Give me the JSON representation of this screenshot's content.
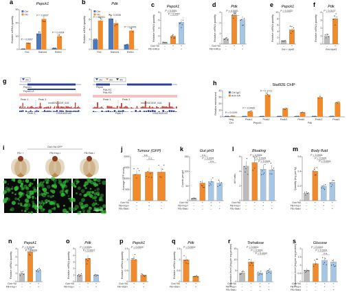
{
  "colors": {
    "ctrl": "#4a78b8",
    "yki": "#f08a2a",
    "gut": "#f08a2a",
    "grey": "#bbbbbb",
    "lightblue": "#a6c6e6",
    "gene_blue": "#2a3f9e",
    "peak_red": "#c23b3b",
    "igg": "#4a78b8",
    "anti": "#f08a2a"
  },
  "panels": {
    "a": {
      "letter": "a",
      "title": "Pepck1",
      "ylabel": "Relative mRNA quantity",
      "legend": [
        "Ctrl",
        "Yki"
      ],
      "groups": [
        "Fed",
        "Starved",
        "Refed"
      ],
      "pvalues": [
        "P = 0.0067",
        "P = 0.0007",
        "P = 0.0004"
      ],
      "chart_data": {
        "type": "bar",
        "categories": [
          "Fed",
          "Starved",
          "Refed"
        ],
        "series": [
          {
            "name": "Ctrl",
            "values": [
              0.5,
              12,
              1
            ]
          },
          {
            "name": "Yki",
            "values": [
              5,
              23,
              10
            ]
          }
        ],
        "ylim": [
          0,
          30
        ],
        "yticks": [
          0,
          10,
          20,
          30
        ],
        "ylabel": "Relative mRNA quantity"
      }
    },
    "b": {
      "letter": "b",
      "title": "Pdk",
      "ylabel": "Relative mRNA quantity",
      "legend": [
        "Ctrl",
        "Yki"
      ],
      "groups": [
        "Fed",
        "Starved",
        "Refed"
      ],
      "pvalues": [
        "P < 0.0001",
        "P = 0.0038",
        "P = 0.0006"
      ],
      "chart_data": {
        "type": "bar",
        "categories": [
          "Fed",
          "Starved",
          "Refed"
        ],
        "series": [
          {
            "name": "Ctrl",
            "values": [
              2,
              6.2,
              1
            ]
          },
          {
            "name": "Yki",
            "values": [
              5.8,
              5.3,
              3.8
            ]
          }
        ],
        "ylim": [
          0,
          8
        ],
        "yticks": [
          0,
          2,
          4,
          6,
          8
        ],
        "ylabel": "Relative mRNA quantity"
      }
    },
    "c": {
      "letter": "c",
      "title": "Pepck1",
      "ylabel": "Relative mRNA quantity",
      "pvalues": [
        "P < 0.0001",
        "P = 0.0067"
      ],
      "cond": [
        {
          "label": "Gut>Yki",
          "marks": [
            "–",
            "+",
            "+"
          ]
        },
        {
          "label": "FB>InRca",
          "marks": [
            "–",
            "–",
            "+"
          ]
        }
      ],
      "chart_data": {
        "type": "bar",
        "values": [
          0.4,
          2,
          5.5
        ],
        "ylim": [
          0,
          8
        ],
        "yticks": [
          0,
          2,
          4,
          6,
          8
        ],
        "ylabel": "Relative mRNA quantity"
      }
    },
    "d": {
      "letter": "d",
      "title": "Pdk",
      "ylabel": "Relative mRNA quantity",
      "pvalues": [
        "P < 0.0001",
        "n.s."
      ],
      "cond": [
        {
          "label": "Gut>Yki",
          "marks": [
            "–",
            "+",
            "+"
          ]
        },
        {
          "label": "FB>InRca",
          "marks": [
            "–",
            "–",
            "+"
          ]
        }
      ],
      "chart_data": {
        "type": "bar",
        "values": [
          0.5,
          2.7,
          2.3
        ],
        "ylim": [
          0,
          3
        ],
        "yticks": [
          0,
          1,
          2,
          3
        ],
        "ylabel": "Relative mRNA quantity"
      }
    },
    "e": {
      "letter": "e",
      "title": "Pepck1",
      "ylabel": "Relative mRNA quantity",
      "pvalues": [
        "P = 0.0433"
      ],
      "xlabel": "Gut > Upd3",
      "marks": [
        "–",
        "+"
      ],
      "chart_data": {
        "type": "bar",
        "values": [
          1,
          4.5
        ],
        "ylim": [
          0,
          10
        ],
        "yticks": [
          0,
          2,
          4,
          6,
          8,
          10
        ],
        "ylabel": "Relative mRNA quantity"
      }
    },
    "f": {
      "letter": "f",
      "title": "Pdk",
      "ylabel": "Relative mRNA quantity",
      "pvalues": [
        "P = 0.0107"
      ],
      "xlabel": "Gut>Upd3",
      "marks": [
        "–",
        "+"
      ],
      "chart_data": {
        "type": "bar",
        "values": [
          1,
          3.2
        ],
        "ylim": [
          0,
          4
        ],
        "yticks": [
          0,
          1,
          2,
          3,
          4
        ],
        "ylabel": "Relative mRNA quantity"
      }
    },
    "g": {
      "letter": "g",
      "genes_left": [
        "Pepck1",
        "Pepck1-A"
      ],
      "genes_right": [
        "Pepck",
        "Pdk-RC",
        "Pdk-RD"
      ],
      "markers_left": [
        "2N"
      ],
      "markers_right": [
        "2N",
        "3N",
        "4N"
      ],
      "peaks_left": [
        "Peak 1",
        "Peak 3",
        "Peak 2"
      ],
      "peaks_right": [
        "Peak 1",
        "Peak 3",
        "Peak 2"
      ],
      "tracks": [
        "modENCODE_616",
        "modENCODE_616"
      ],
      "gsm": [
        "GSM1645140",
        "GSM1645140"
      ]
    },
    "h": {
      "letter": "h",
      "title": "Stat92E ChIP",
      "ylabel": "Relative enrichment",
      "legend": [
        "Ctrl IgG",
        "Anti-HA"
      ],
      "groups": [
        "Neg",
        "Peak1",
        "Peak2",
        "Peak3",
        "Peak1",
        "Peak2",
        "Peak3"
      ],
      "group_labels": [
        "Ctrl",
        "Pepck1",
        "Pdk"
      ],
      "pvalues": [
        "P = 0.0199",
        "P = 0.0065",
        "P = 0.1711"
      ],
      "chart_data": {
        "type": "bar",
        "categories": [
          "Neg",
          "Peak1",
          "Peak2",
          "Peak3",
          "Peak1",
          "Peak2",
          "Peak3"
        ],
        "series": [
          {
            "name": "Ctrl IgG",
            "values": [
              1,
              1,
              1,
              1,
              1,
              1,
              1
            ]
          },
          {
            "name": "Anti-HA",
            "values": [
              1.2,
              8,
              34,
              13,
              7,
              30,
              22
            ]
          }
        ],
        "ylim": [
          0,
          40
        ],
        "yticks": [
          0,
          10,
          20,
          30,
          40
        ],
        "ylabel": "Relative enrichment"
      }
    },
    "i": {
      "letter": "i",
      "header": "Gut>Yki-GFP",
      "cols": [
        "FB> +",
        "FB>Hop-i",
        "FB>Stat-i"
      ],
      "scale": "100 µm"
    },
    "j": {
      "letter": "j",
      "title": "Tumour (GFP)",
      "ylabel": "Average GFP levels",
      "pvalues": [
        "n.s.",
        "n.s."
      ],
      "cond": [
        {
          "label": "Gut>Yki",
          "marks": [
            "+",
            "+",
            "+"
          ]
        },
        {
          "label": "FB>Hop-i",
          "marks": [
            "–",
            "+",
            "–"
          ]
        },
        {
          "label": "FB>Stat-i",
          "marks": [
            "–",
            "–",
            "+"
          ]
        }
      ],
      "chart_data": {
        "type": "bar",
        "values": [
          1200,
          1300,
          1300
        ],
        "ylim": [
          0,
          2000
        ],
        "yticks": [
          0,
          500,
          1000,
          1500,
          2000
        ],
        "ylabel": "Average GFP levels"
      }
    },
    "k": {
      "letter": "k",
      "title": "Gut pH3",
      "ylabel": "Counts per gut",
      "pvalues": [
        "n.s.",
        "P < 0.0001",
        "n.s."
      ],
      "cond": [
        {
          "label": "Gut>Yki",
          "marks": [
            "–",
            "+",
            "+",
            "+"
          ]
        },
        {
          "label": "FB>Hop-i",
          "marks": [
            "–",
            "–",
            "+",
            "–"
          ]
        },
        {
          "label": "FB>Stat-i",
          "marks": [
            "–",
            "–",
            "–",
            "+"
          ]
        }
      ],
      "chart_data": {
        "type": "bar",
        "values": [
          8,
          60,
          65,
          60
        ],
        "ylim": [
          0,
          150
        ],
        "yticks": [
          0,
          50,
          100,
          150
        ],
        "ylabel": "Counts per gut"
      }
    },
    "l": {
      "letter": "l",
      "title": "Bloating",
      "ylabel": "A/H ratio",
      "pvalues": [
        "P < 0.0001",
        "P < 0.0001",
        "P < 0.0001"
      ],
      "cond": [
        {
          "label": "Gut>Yki",
          "marks": [
            "–",
            "+",
            "+",
            "+"
          ]
        },
        {
          "label": "FB>Hop-i",
          "marks": [
            "–",
            "–",
            "+",
            "–"
          ]
        },
        {
          "label": "FB>Stat-i",
          "marks": [
            "–",
            "–",
            "–",
            "+"
          ]
        }
      ],
      "chart_data": {
        "type": "bar",
        "values": [
          4.7,
          5.2,
          4.3,
          4.2
        ],
        "ylim": [
          0,
          6
        ],
        "yticks": [
          0,
          2,
          4,
          6
        ],
        "ylabel": "A/H ratio"
      }
    },
    "m": {
      "letter": "m",
      "title": "Body fluid",
      "ylabel": "Quantity (mg per fly)",
      "pvalues": [
        "P < 0.0001",
        "P < 0.0001",
        "P < 0.0001"
      ],
      "cond": [
        {
          "label": "Gut>Yki",
          "marks": [
            "–",
            "+",
            "+",
            "+"
          ]
        },
        {
          "label": "FB>Hop-i",
          "marks": [
            "–",
            "–",
            "+",
            "–"
          ]
        },
        {
          "label": "FB>Stat-i",
          "marks": [
            "–",
            "–",
            "–",
            "+"
          ]
        }
      ],
      "chart_data": {
        "type": "bar",
        "values": [
          0.1,
          0.4,
          0.2,
          0.25
        ],
        "ylim": [
          0,
          0.6
        ],
        "yticks": [
          0,
          0.2,
          0.4,
          0.6
        ],
        "ylabel": "Quantity (mg per fly)"
      }
    },
    "n": {
      "letter": "n",
      "title": "Pepck1",
      "ylabel": "Relative mRNA quantity",
      "pvalues": [
        "P = 0.0048",
        "P = 0.0006"
      ],
      "cond": [
        {
          "label": "Gut>Yki",
          "marks": [
            "–",
            "+",
            "+"
          ]
        },
        {
          "label": "FB>Hop-i",
          "marks": [
            "–",
            "–",
            "+"
          ]
        }
      ],
      "chart_data": {
        "type": "bar",
        "values": [
          1,
          3.6,
          1.4
        ],
        "ylim": [
          0,
          4
        ],
        "yticks": [
          0,
          1,
          2,
          3,
          4
        ],
        "ylabel": "Relative mRNA quantity"
      }
    },
    "o": {
      "letter": "o",
      "title": "Pdk",
      "ylabel": "Relative mRNA quantity",
      "pvalues": [
        "P < 0.0001",
        "P < 0.0001"
      ],
      "cond": [
        {
          "label": "Gut>Yki",
          "marks": [
            "–",
            "+",
            "+"
          ]
        },
        {
          "label": "FB>Hop-i",
          "marks": [
            "–",
            "–",
            "+"
          ]
        }
      ],
      "chart_data": {
        "type": "bar",
        "values": [
          1,
          3.5,
          1
        ],
        "ylim": [
          0,
          5
        ],
        "yticks": [
          0,
          1,
          2,
          3,
          4,
          5
        ],
        "ylabel": "Relative mRNA quantity"
      }
    },
    "p": {
      "letter": "p",
      "title": "Pepck1",
      "ylabel": "Relative mRNA quantity",
      "pvalues": [
        "P = 0.0009"
      ],
      "cond": [
        {
          "label": "Gut>Yki",
          "marks": [
            "+",
            "+"
          ]
        },
        {
          "label": "FB>Stat-i",
          "marks": [
            "–",
            "+"
          ]
        }
      ],
      "chart_data": {
        "type": "bar",
        "values": [
          1,
          0.3
        ],
        "ylim": [
          0,
          1.5
        ],
        "yticks": [
          0,
          0.5,
          1,
          1.5
        ],
        "ylabel": "Relative mRNA quantity"
      }
    },
    "q": {
      "letter": "q",
      "title": "Pdk",
      "ylabel": "Relative mRNA quantity",
      "pvalues": [
        "P = 0.0002"
      ],
      "cond": [
        {
          "label": "Gut>Yki",
          "marks": [
            "+",
            "+"
          ]
        },
        {
          "label": "FB>Stat-i",
          "marks": [
            "–",
            "+"
          ]
        }
      ],
      "chart_data": {
        "type": "bar",
        "values": [
          1,
          0.25
        ],
        "ylim": [
          0,
          1.5
        ],
        "yticks": [
          0,
          0.5,
          1,
          1.5
        ],
        "ylabel": "Relative mRNA quantity"
      }
    },
    "r": {
      "letter": "r",
      "title": "Trehalose",
      "ylabel": "Expression level (mg per mg protein)",
      "pvalues": [
        "P < 0.0001",
        "P < 0.0001",
        "P = 0.0002"
      ],
      "cond": [
        {
          "label": "Gut>Yki",
          "marks": [
            "–",
            "+",
            "+",
            "+"
          ]
        },
        {
          "label": "FB>Hop-i",
          "marks": [
            "–",
            "–",
            "+",
            "–"
          ]
        },
        {
          "label": "FB>Stat-i",
          "marks": [
            "–",
            "–",
            "–",
            "+"
          ]
        }
      ],
      "chart_data": {
        "type": "bar",
        "values": [
          4,
          9,
          4,
          5
        ],
        "ylim": [
          0,
          15
        ],
        "yticks": [
          0,
          5,
          10,
          15
        ],
        "ylabel": "Expression level (mg per mg protein)"
      }
    },
    "s": {
      "letter": "s",
      "title": "Glucose",
      "ylabel": "Expression level (mg per mg protein)",
      "pvalues": [
        "P = 0.0002",
        "P < 0.0001",
        "n.s."
      ],
      "cond": [
        {
          "label": "Gut>Yki",
          "marks": [
            "–",
            "+",
            "+",
            "+"
          ]
        },
        {
          "label": "FB>Hop-i",
          "marks": [
            "–",
            "–",
            "+",
            "–"
          ]
        },
        {
          "label": "FB>Stat-i",
          "marks": [
            "–",
            "–",
            "–",
            "+"
          ]
        }
      ],
      "chart_data": {
        "type": "bar",
        "values": [
          0.7,
          1.1,
          1.3,
          1.2
        ],
        "ylim": [
          0,
          2
        ],
        "yticks": [
          0,
          0.5,
          1,
          1.5,
          2
        ],
        "ylabel": "Expression level (mg per mg protein)"
      }
    }
  }
}
